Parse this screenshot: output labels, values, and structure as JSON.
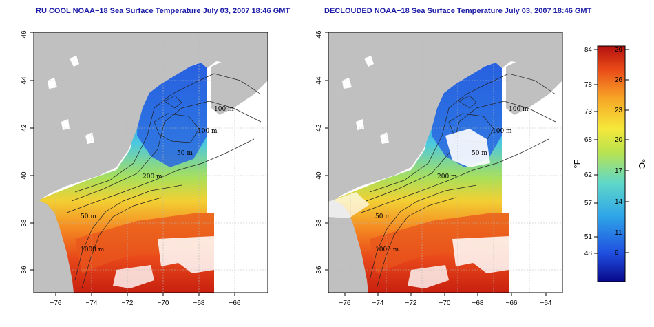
{
  "panels": [
    {
      "title": "RU COOL NOAA−18 Sea Surface Temperature July 03, 2007 18:46 GMT",
      "contour_labels": [
        "100 m",
        "100 m",
        "50 m",
        "200 m",
        "50 m",
        "1000 m"
      ]
    },
    {
      "title": "DECLOUDED NOAA−18 Sea Surface Temperature July 03, 2007 18:46 GMT",
      "contour_labels": [
        "100 m",
        "100 m",
        "50 m",
        "200 m",
        "50 m",
        "1000 m"
      ]
    }
  ],
  "axes": {
    "x_ticks": [
      "−76",
      "−74",
      "−72",
      "−70",
      "−68",
      "−66",
      "−64"
    ],
    "y_ticks": [
      "36",
      "38",
      "40",
      "42",
      "44",
      "46"
    ]
  },
  "colorbar": {
    "f_label": "°F",
    "c_label": "°C",
    "f_ticks": [
      "84",
      "78",
      "73",
      "68",
      "62",
      "57",
      "51",
      "48"
    ],
    "c_ticks": [
      "29",
      "26",
      "23",
      "20",
      "17",
      "14",
      "11",
      "9"
    ],
    "colors": [
      "#08088a",
      "#1f4fe0",
      "#2fa6e8",
      "#5fd8c8",
      "#b9e34f",
      "#f5e83a",
      "#f7a526",
      "#ea4b18",
      "#b5110f"
    ]
  },
  "colors": {
    "land": "#c0c0c0",
    "title": "#1a1aa6"
  }
}
